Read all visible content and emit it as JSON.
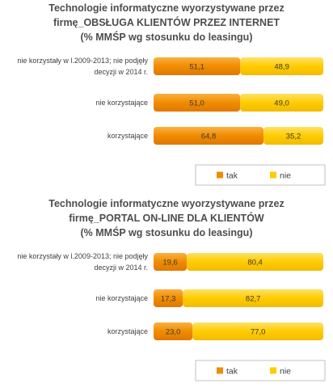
{
  "colors": {
    "tak": "#f08c00",
    "nie": "#ffcc00",
    "tak_light": "#fbb040",
    "nie_light": "#ffe066"
  },
  "chart_data": [
    {
      "type": "bar",
      "orientation": "horizontal",
      "stacked": true,
      "title_lines": [
        "Technologie informatyczne wyorzystywane przez",
        "firmę_OBSŁUGA KLIENTÓW PRZEZ INTERNET",
        "(% MMŚP wg stosunku do leasingu)"
      ],
      "categories": [
        [
          "nie korzystały w l.2009-2013; nie podjęły",
          "decyzji w 2014 r."
        ],
        [
          "nie korzystające"
        ],
        [
          "korzystające"
        ]
      ],
      "series": [
        {
          "name": "tak",
          "values": [
            51.1,
            51.0,
            64.8
          ],
          "labels": [
            "51,1",
            "51,0",
            "64,8"
          ]
        },
        {
          "name": "nie",
          "values": [
            48.9,
            49.0,
            35.2
          ],
          "labels": [
            "48,9",
            "49,0",
            "35,2"
          ]
        }
      ],
      "xlim": [
        0,
        100
      ],
      "legend_position": "bottom-right"
    },
    {
      "type": "bar",
      "orientation": "horizontal",
      "stacked": true,
      "title_lines": [
        "Technologie informatyczne wyorzystywane przez",
        "firmę_PORTAL ON-LINE DLA KLIENTÓW",
        "(% MMŚP wg stosunku do leasingu)"
      ],
      "categories": [
        [
          "nie korzystały w l.2009-2013; nie podjęły",
          "decyzji w 2014 r."
        ],
        [
          "nie korzystające"
        ],
        [
          "korzystające"
        ]
      ],
      "series": [
        {
          "name": "tak",
          "values": [
            19.6,
            17.3,
            23.0
          ],
          "labels": [
            "19,6",
            "17,3",
            "23,0"
          ]
        },
        {
          "name": "nie",
          "values": [
            80.4,
            82.7,
            77.0
          ],
          "labels": [
            "80,4",
            "82,7",
            "77,0"
          ]
        }
      ],
      "xlim": [
        0,
        100
      ],
      "legend_position": "bottom-right"
    }
  ]
}
